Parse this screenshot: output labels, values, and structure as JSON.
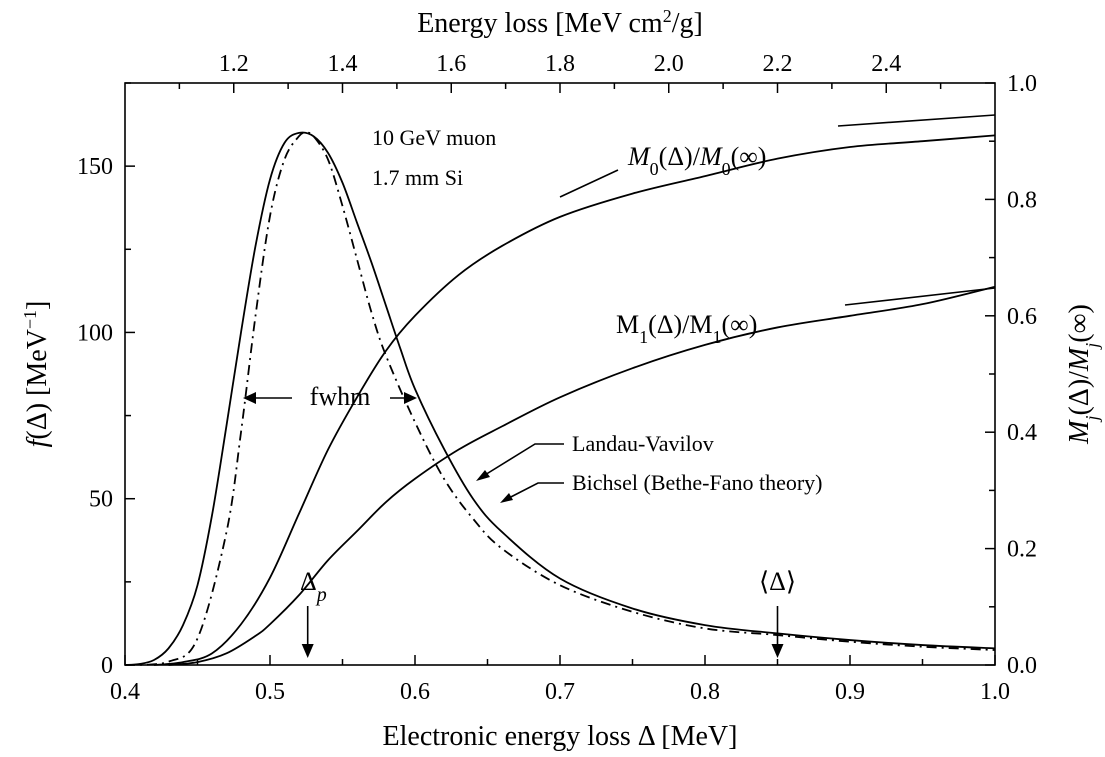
{
  "chart_data": {
    "type": "line",
    "xlabel": "Electronic energy loss Δ  [MeV]",
    "top_xlabel": "Energy loss  [MeV cm²/g]",
    "ylabel": "f(Δ)  [MeV⁻¹]",
    "y2label": "Mj(Δ)/Mj(∞)",
    "xlim": [
      0.4,
      1.0
    ],
    "ylim": [
      0,
      175
    ],
    "y2lim": [
      0,
      1.0
    ],
    "top_xlim": [
      1.0,
      2.6
    ],
    "x_ticks": [
      "0.4",
      "0.5",
      "0.6",
      "0.7",
      "0.8",
      "0.9",
      "1.0"
    ],
    "y_ticks": [
      "0",
      "50",
      "100",
      "150"
    ],
    "y2_ticks": [
      "0.0",
      "0.2",
      "0.4",
      "0.6",
      "0.8",
      "1.0"
    ],
    "top_ticks": [
      "1.2",
      "1.4",
      "1.6",
      "1.8",
      "2.0",
      "2.2",
      "2.4"
    ],
    "grid": false,
    "series": [
      {
        "name": "Landau-Vavilov",
        "axis": "left",
        "style": "dashdot",
        "x": [
          0.4,
          0.43,
          0.45,
          0.47,
          0.48,
          0.49,
          0.5,
          0.51,
          0.52,
          0.525,
          0.53,
          0.54,
          0.55,
          0.56,
          0.57,
          0.58,
          0.6,
          0.62,
          0.64,
          0.66,
          0.7,
          0.75,
          0.8,
          0.85,
          0.9,
          0.95,
          1.0
        ],
        "y": [
          0,
          1,
          8,
          40,
          70,
          105,
          135,
          152,
          159,
          160,
          159,
          152,
          138,
          122,
          106,
          93,
          73,
          56,
          44,
          35,
          24,
          16,
          11,
          9,
          7,
          5.5,
          4.5
        ]
      },
      {
        "name": "Bichsel (Bethe-Fano theory)",
        "axis": "left",
        "style": "solid",
        "x": [
          0.4,
          0.41,
          0.42,
          0.43,
          0.44,
          0.45,
          0.46,
          0.47,
          0.48,
          0.49,
          0.5,
          0.51,
          0.52,
          0.53,
          0.54,
          0.55,
          0.56,
          0.57,
          0.58,
          0.59,
          0.6,
          0.62,
          0.64,
          0.66,
          0.7,
          0.75,
          0.8,
          0.85,
          0.9,
          0.95,
          1.0
        ],
        "y": [
          0,
          0.3,
          1.5,
          5,
          12,
          24,
          45,
          72,
          100,
          126,
          146,
          157,
          160,
          159,
          154,
          145,
          133,
          121,
          108,
          95,
          83,
          65,
          50,
          40,
          26,
          17,
          12,
          9.5,
          7.5,
          6,
          5
        ]
      },
      {
        "name": "M0(Δ)/M0(∞)",
        "axis": "right",
        "style": "solid",
        "x": [
          0.42,
          0.44,
          0.46,
          0.48,
          0.5,
          0.52,
          0.54,
          0.56,
          0.58,
          0.6,
          0.63,
          0.66,
          0.7,
          0.75,
          0.8,
          0.85,
          0.9,
          0.95,
          1.0
        ],
        "y": [
          0,
          0.005,
          0.02,
          0.07,
          0.15,
          0.26,
          0.37,
          0.46,
          0.54,
          0.6,
          0.67,
          0.72,
          0.77,
          0.81,
          0.84,
          0.87,
          0.89,
          0.9,
          0.91
        ]
      },
      {
        "name": "M1(Δ)/M1(∞)",
        "axis": "right",
        "style": "solid",
        "x": [
          0.43,
          0.45,
          0.47,
          0.49,
          0.5,
          0.52,
          0.54,
          0.56,
          0.58,
          0.6,
          0.63,
          0.66,
          0.7,
          0.75,
          0.8,
          0.85,
          0.9,
          0.95,
          1.0
        ],
        "y": [
          0,
          0.005,
          0.02,
          0.05,
          0.07,
          0.12,
          0.18,
          0.23,
          0.28,
          0.32,
          0.37,
          0.41,
          0.46,
          0.51,
          0.55,
          0.58,
          0.6,
          0.62,
          0.65
        ]
      }
    ],
    "annotations": {
      "sample_line1": "10 GeV muon",
      "sample_line2": "1.7 mm Si",
      "m0_label": "M0(Δ)/M0(∞)",
      "m1_label": "M1(Δ)/M1(∞)",
      "fwhm": "fwhm",
      "landau": "Landau-Vavilov",
      "bichsel": "Bichsel (Bethe-Fano theory)",
      "delta_p": "Δp",
      "delta_mean": "⟨Δ⟩",
      "delta_p_x": 0.526,
      "delta_mean_x": 0.85
    }
  }
}
